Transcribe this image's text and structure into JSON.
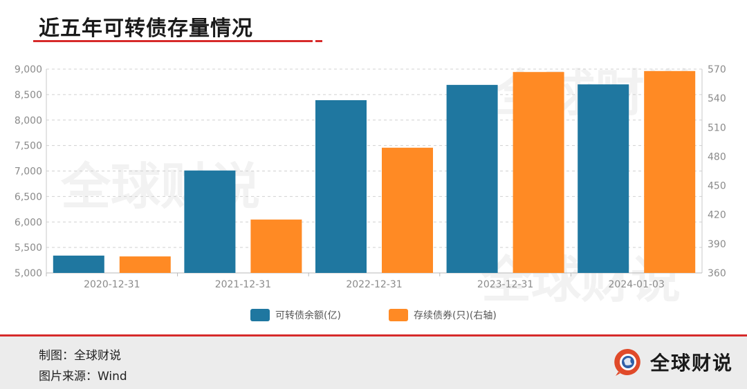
{
  "title": "近五年可转债存量情况",
  "footer": {
    "maker": "制图：全球财说",
    "source": "图片来源：Wind"
  },
  "brand": {
    "name": "全球财说",
    "logo_icon": "globe-chat-bubble-icon",
    "accent": "#d62a2a"
  },
  "watermark": "全球财说",
  "chart_data": {
    "type": "bar",
    "categories": [
      "2020-12-31",
      "2021-12-31",
      "2022-12-31",
      "2023-12-31",
      "2024-01-03"
    ],
    "series": [
      {
        "name": "可转债余额(亿)",
        "axis": "left",
        "color": "#1f77a0",
        "values": [
          5340,
          7010,
          8390,
          8690,
          8700
        ]
      },
      {
        "name": "存续债券(只)(右轴)",
        "axis": "right",
        "color": "#ff8a24",
        "values": [
          377,
          415,
          489,
          567,
          568
        ]
      }
    ],
    "y_left": {
      "min": 5000,
      "max": 9000,
      "ticks": [
        "5,000",
        "5,500",
        "6,000",
        "6,500",
        "7,000",
        "7,500",
        "8,000",
        "8,500",
        "9,000"
      ]
    },
    "y_right": {
      "min": 360,
      "max": 570,
      "ticks": [
        "360",
        "390",
        "420",
        "450",
        "480",
        "510",
        "540",
        "570"
      ]
    },
    "grid": true,
    "legend": "bottom-center"
  }
}
